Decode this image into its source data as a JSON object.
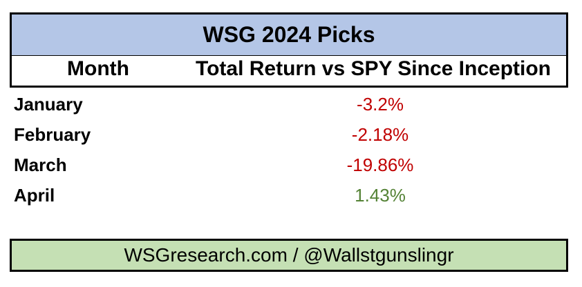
{
  "table": {
    "title": "WSG 2024 Picks",
    "headers": {
      "month": "Month",
      "return": "Total Return vs SPY Since Inception"
    },
    "rows": [
      {
        "month": "January",
        "value": "-3.2%",
        "sign": "negative"
      },
      {
        "month": "February",
        "value": "-2.18%",
        "sign": "negative"
      },
      {
        "month": "March",
        "value": "-19.86%",
        "sign": "negative"
      },
      {
        "month": "April",
        "value": "1.43%",
        "sign": "positive"
      }
    ],
    "footer": "WSGresearch.com / @Wallstgunslingr"
  },
  "colors": {
    "title_bg": "#b4c6e7",
    "footer_bg": "#c5e0b4",
    "negative": "#c00000",
    "positive": "#548235"
  }
}
